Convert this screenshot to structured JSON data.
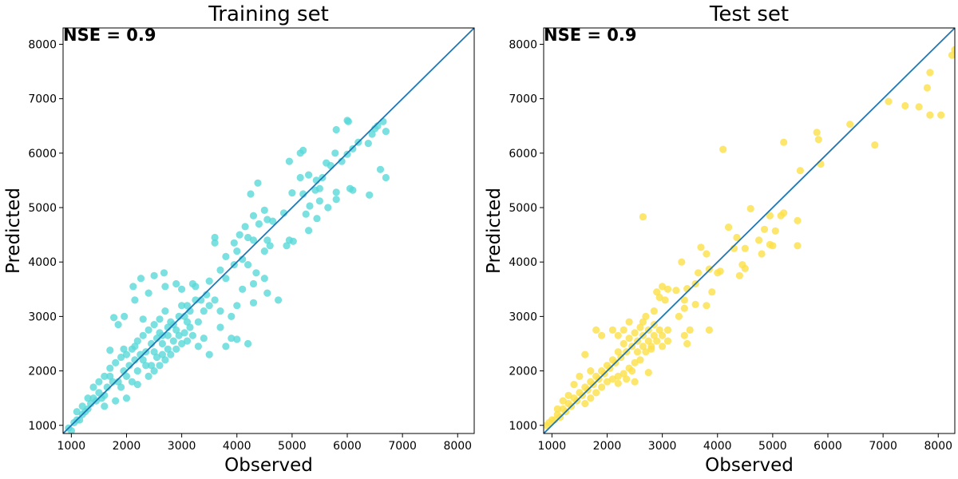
{
  "chart_data": [
    {
      "type": "scatter",
      "title": "Training set",
      "xlabel": "Observed",
      "ylabel": "Predicted",
      "annotation": "NSE = 0.9",
      "xlim": [
        850,
        8300
      ],
      "ylim": [
        850,
        8300
      ],
      "xticks": [
        "1000",
        "2000",
        "3000",
        "4000",
        "5000",
        "6000",
        "7000",
        "8000"
      ],
      "yticks": [
        "1000",
        "2000",
        "3000",
        "4000",
        "5000",
        "6000",
        "7000",
        "8000"
      ],
      "identity_line": true,
      "grid": false,
      "point_color": "#5ad8d8",
      "line_color": "#1f77b4",
      "points": [
        [
          6000,
          6600
        ],
        [
          6020,
          6580
        ],
        [
          5800,
          6430
        ],
        [
          6650,
          6580
        ],
        [
          6550,
          6500
        ],
        [
          6500,
          6450
        ],
        [
          6700,
          6400
        ],
        [
          6200,
          6200
        ],
        [
          6380,
          6180
        ],
        [
          6100,
          6080
        ],
        [
          6450,
          6350
        ],
        [
          5200,
          6050
        ],
        [
          5150,
          6000
        ],
        [
          5780,
          6000
        ],
        [
          6000,
          5980
        ],
        [
          5620,
          5820
        ],
        [
          5900,
          5850
        ],
        [
          5700,
          5770
        ],
        [
          4950,
          5850
        ],
        [
          5550,
          5550
        ],
        [
          6600,
          5700
        ],
        [
          6700,
          5550
        ],
        [
          5300,
          5600
        ],
        [
          5440,
          5500
        ],
        [
          4380,
          5450
        ],
        [
          5150,
          5550
        ],
        [
          5500,
          5350
        ],
        [
          5420,
          5320
        ],
        [
          5000,
          5270
        ],
        [
          6050,
          5350
        ],
        [
          6100,
          5320
        ],
        [
          5200,
          5250
        ],
        [
          5800,
          5280
        ],
        [
          6400,
          5230
        ],
        [
          4250,
          5250
        ],
        [
          5500,
          5120
        ],
        [
          5320,
          5030
        ],
        [
          5800,
          5150
        ],
        [
          5650,
          5000
        ],
        [
          4500,
          4950
        ],
        [
          4850,
          4900
        ],
        [
          5250,
          4880
        ],
        [
          5450,
          4800
        ],
        [
          4300,
          4850
        ],
        [
          4150,
          4650
        ],
        [
          4550,
          4780
        ],
        [
          4650,
          4750
        ],
        [
          4400,
          4700
        ],
        [
          3600,
          4450
        ],
        [
          3600,
          4350
        ],
        [
          4050,
          4500
        ],
        [
          3950,
          4350
        ],
        [
          4200,
          4450
        ],
        [
          4950,
          4400
        ],
        [
          5020,
          4380
        ],
        [
          4900,
          4300
        ],
        [
          4550,
          4400
        ],
        [
          5300,
          4580
        ],
        [
          4300,
          4400
        ],
        [
          4500,
          4200
        ],
        [
          3800,
          4100
        ],
        [
          4000,
          4200
        ],
        [
          4600,
          4300
        ],
        [
          4100,
          4050
        ],
        [
          4200,
          3950
        ],
        [
          3950,
          3950
        ],
        [
          3700,
          3850
        ],
        [
          4350,
          3800
        ],
        [
          4500,
          3700
        ],
        [
          4300,
          3600
        ],
        [
          3200,
          3600
        ],
        [
          3250,
          3550
        ],
        [
          3000,
          3500
        ],
        [
          3500,
          3650
        ],
        [
          3800,
          3700
        ],
        [
          4100,
          3500
        ],
        [
          4550,
          3430
        ],
        [
          4300,
          3250
        ],
        [
          4750,
          3300
        ],
        [
          2680,
          3800
        ],
        [
          2500,
          3750
        ],
        [
          2260,
          3700
        ],
        [
          2120,
          3550
        ],
        [
          2400,
          3430
        ],
        [
          2700,
          3550
        ],
        [
          2900,
          3600
        ],
        [
          2150,
          3300
        ],
        [
          1960,
          3000
        ],
        [
          2300,
          2950
        ],
        [
          3000,
          3200
        ],
        [
          3700,
          3100
        ],
        [
          3900,
          3000
        ],
        [
          3700,
          2800
        ],
        [
          4000,
          3200
        ],
        [
          3100,
          2900
        ],
        [
          3400,
          2600
        ],
        [
          3900,
          2600
        ],
        [
          3800,
          2450
        ],
        [
          3300,
          2450
        ],
        [
          4200,
          2500
        ],
        [
          4000,
          2580
        ],
        [
          3500,
          2300
        ],
        [
          1770,
          2980
        ],
        [
          1850,
          2850
        ],
        [
          1700,
          2380
        ],
        [
          2150,
          2450
        ],
        [
          1950,
          2400
        ],
        [
          2600,
          2700
        ],
        [
          2800,
          2900
        ],
        [
          2500,
          2350
        ],
        [
          2750,
          2400
        ],
        [
          2300,
          2200
        ],
        [
          2200,
          2000
        ],
        [
          2000,
          1900
        ],
        [
          1700,
          1900
        ],
        [
          1500,
          1600
        ],
        [
          1300,
          1300
        ],
        [
          1400,
          1500
        ],
        [
          1600,
          1550
        ],
        [
          1200,
          1200
        ],
        [
          1100,
          1100
        ],
        [
          950,
          950
        ],
        [
          1000,
          900
        ],
        [
          1050,
          1050
        ],
        [
          1150,
          1100
        ],
        [
          1250,
          1250
        ],
        [
          1350,
          1400
        ],
        [
          1450,
          1450
        ],
        [
          1550,
          1500
        ],
        [
          1650,
          1700
        ],
        [
          1750,
          1800
        ],
        [
          1850,
          1800
        ],
        [
          1950,
          2000
        ],
        [
          2050,
          2100
        ],
        [
          2150,
          2200
        ],
        [
          2250,
          2300
        ],
        [
          2350,
          2350
        ],
        [
          2450,
          2500
        ],
        [
          2550,
          2600
        ],
        [
          2650,
          2650
        ],
        [
          2750,
          2800
        ],
        [
          2850,
          2850
        ],
        [
          2950,
          3000
        ],
        [
          3050,
          3000
        ],
        [
          3150,
          3100
        ],
        [
          3250,
          3300
        ],
        [
          3350,
          3300
        ],
        [
          3450,
          3400
        ],
        [
          1600,
          1350
        ],
        [
          1800,
          1450
        ],
        [
          1900,
          1700
        ],
        [
          2000,
          1500
        ],
        [
          2100,
          1800
        ],
        [
          2200,
          1750
        ],
        [
          2400,
          1900
        ],
        [
          2500,
          2000
        ],
        [
          2600,
          2100
        ],
        [
          2700,
          2200
        ],
        [
          2800,
          2300
        ],
        [
          2900,
          2400
        ],
        [
          3000,
          2500
        ],
        [
          3100,
          2550
        ],
        [
          3200,
          2650
        ],
        [
          2650,
          2300
        ],
        [
          2850,
          2550
        ],
        [
          2950,
          2650
        ],
        [
          3050,
          2700
        ],
        [
          3150,
          2800
        ],
        [
          1400,
          1700
        ],
        [
          1500,
          1800
        ],
        [
          1600,
          1900
        ],
        [
          1700,
          2050
        ],
        [
          1800,
          2150
        ],
        [
          1900,
          2250
        ],
        [
          2000,
          2300
        ],
        [
          2100,
          2400
        ],
        [
          2200,
          2550
        ],
        [
          2300,
          2650
        ],
        [
          2400,
          2750
        ],
        [
          2500,
          2850
        ],
        [
          2600,
          2950
        ],
        [
          2700,
          3100
        ],
        [
          1300,
          1500
        ],
        [
          1200,
          1350
        ],
        [
          1100,
          1250
        ],
        [
          2450,
          2100
        ],
        [
          2550,
          2250
        ],
        [
          2350,
          2100
        ],
        [
          3400,
          3100
        ],
        [
          3500,
          3200
        ],
        [
          3600,
          3300
        ],
        [
          3300,
          2900
        ],
        [
          3100,
          3200
        ],
        [
          2900,
          2750
        ],
        [
          2750,
          2650
        ],
        [
          2650,
          2500
        ]
      ]
    },
    {
      "type": "scatter",
      "title": "Test set",
      "xlabel": "Observed",
      "ylabel": "Predicted",
      "annotation": "NSE = 0.9",
      "xlim": [
        850,
        8300
      ],
      "ylim": [
        850,
        8300
      ],
      "xticks": [
        "1000",
        "2000",
        "3000",
        "4000",
        "5000",
        "6000",
        "7000",
        "8000"
      ],
      "yticks": [
        "1000",
        "2000",
        "3000",
        "4000",
        "5000",
        "6000",
        "7000",
        "8000"
      ],
      "identity_line": true,
      "grid": false,
      "point_color": "#fde047",
      "line_color": "#1f77b4",
      "points": [
        [
          8300,
          7900
        ],
        [
          8250,
          7800
        ],
        [
          7850,
          7480
        ],
        [
          7100,
          6950
        ],
        [
          7400,
          6870
        ],
        [
          7650,
          6850
        ],
        [
          7800,
          7200
        ],
        [
          7850,
          6700
        ],
        [
          8050,
          6700
        ],
        [
          6850,
          6150
        ],
        [
          6400,
          6530
        ],
        [
          5800,
          6380
        ],
        [
          5830,
          6250
        ],
        [
          5870,
          5800
        ],
        [
          5200,
          6200
        ],
        [
          4100,
          6070
        ],
        [
          5500,
          5680
        ],
        [
          2650,
          4830
        ],
        [
          4600,
          4980
        ],
        [
          4950,
          4850
        ],
        [
          5200,
          4900
        ],
        [
          5150,
          4850
        ],
        [
          5450,
          4760
        ],
        [
          4850,
          4600
        ],
        [
          5050,
          4570
        ],
        [
          4750,
          4400
        ],
        [
          4200,
          4640
        ],
        [
          4350,
          4450
        ],
        [
          4950,
          4320
        ],
        [
          5000,
          4300
        ],
        [
          5450,
          4300
        ],
        [
          4300,
          4250
        ],
        [
          4500,
          4250
        ],
        [
          4800,
          4150
        ],
        [
          3700,
          4270
        ],
        [
          3350,
          4000
        ],
        [
          3850,
          3870
        ],
        [
          3800,
          4150
        ],
        [
          3600,
          3600
        ],
        [
          3900,
          3450
        ],
        [
          4000,
          3800
        ],
        [
          4050,
          3830
        ],
        [
          4400,
          3750
        ],
        [
          4450,
          3950
        ],
        [
          4500,
          3880
        ],
        [
          3800,
          3200
        ],
        [
          3600,
          3220
        ],
        [
          3650,
          3800
        ],
        [
          3400,
          3300
        ],
        [
          3450,
          3510
        ],
        [
          3250,
          3480
        ],
        [
          3400,
          3150
        ],
        [
          3300,
          3000
        ],
        [
          3500,
          2750
        ],
        [
          3450,
          2500
        ],
        [
          3400,
          2650
        ],
        [
          3850,
          2750
        ],
        [
          3100,
          2550
        ],
        [
          3000,
          2450
        ],
        [
          2800,
          2400
        ],
        [
          2750,
          1970
        ],
        [
          2900,
          3450
        ],
        [
          3000,
          3550
        ],
        [
          3100,
          3500
        ],
        [
          3050,
          3300
        ],
        [
          2950,
          3350
        ],
        [
          2850,
          3100
        ],
        [
          2700,
          3000
        ],
        [
          2650,
          2900
        ],
        [
          2600,
          2800
        ],
        [
          2500,
          2700
        ],
        [
          2400,
          2600
        ],
        [
          2300,
          2500
        ],
        [
          2200,
          2350
        ],
        [
          2100,
          2200
        ],
        [
          2000,
          2100
        ],
        [
          1900,
          2000
        ],
        [
          1800,
          1900
        ],
        [
          1700,
          1800
        ],
        [
          1600,
          1700
        ],
        [
          1500,
          1600
        ],
        [
          1400,
          1500
        ],
        [
          1300,
          1400
        ],
        [
          1200,
          1300
        ],
        [
          1100,
          1200
        ],
        [
          1000,
          1100
        ],
        [
          900,
          1000
        ],
        [
          950,
          1050
        ],
        [
          1050,
          1100
        ],
        [
          1150,
          1150
        ],
        [
          1250,
          1250
        ],
        [
          1350,
          1350
        ],
        [
          1450,
          1450
        ],
        [
          1550,
          1550
        ],
        [
          1650,
          1650
        ],
        [
          1750,
          1750
        ],
        [
          1850,
          1850
        ],
        [
          1950,
          1950
        ],
        [
          2050,
          2050
        ],
        [
          2150,
          2150
        ],
        [
          2250,
          2250
        ],
        [
          2350,
          2350
        ],
        [
          2450,
          2450
        ],
        [
          2550,
          2550
        ],
        [
          2650,
          2650
        ],
        [
          2750,
          2750
        ],
        [
          2850,
          2850
        ],
        [
          1800,
          2750
        ],
        [
          1900,
          2650
        ],
        [
          2100,
          2750
        ],
        [
          2200,
          2650
        ],
        [
          2300,
          2750
        ],
        [
          2400,
          2900
        ],
        [
          1600,
          2300
        ],
        [
          1700,
          2000
        ],
        [
          1500,
          1900
        ],
        [
          1400,
          1750
        ],
        [
          1300,
          1550
        ],
        [
          1200,
          1450
        ],
        [
          1100,
          1300
        ],
        [
          1600,
          1400
        ],
        [
          1700,
          1500
        ],
        [
          1800,
          1600
        ],
        [
          1900,
          1700
        ],
        [
          2000,
          1800
        ],
        [
          2100,
          1850
        ],
        [
          2200,
          1900
        ],
        [
          2300,
          1950
        ],
        [
          2400,
          2050
        ],
        [
          2500,
          2150
        ],
        [
          2600,
          2200
        ],
        [
          2700,
          2350
        ],
        [
          2800,
          2450
        ],
        [
          2900,
          2550
        ],
        [
          3000,
          2650
        ],
        [
          3100,
          2750
        ],
        [
          2500,
          1800
        ],
        [
          2350,
          1850
        ],
        [
          2200,
          1770
        ],
        [
          2450,
          2000
        ],
        [
          2550,
          2350
        ],
        [
          2650,
          2450
        ],
        [
          2750,
          2550
        ],
        [
          2850,
          2650
        ],
        [
          2950,
          2750
        ]
      ]
    }
  ]
}
